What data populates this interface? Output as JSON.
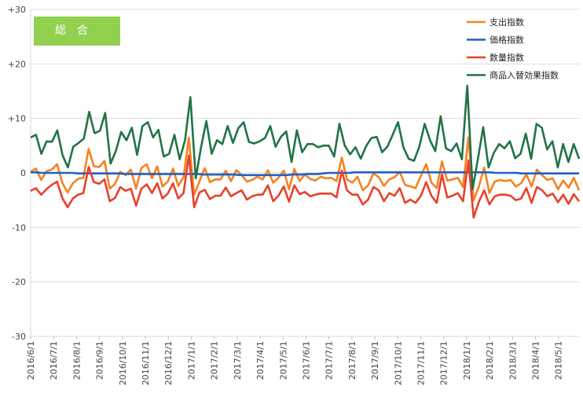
{
  "badge": "総合",
  "chart_data": {
    "type": "line",
    "ylim": [
      -30,
      30
    ],
    "yticks": [
      "+30",
      "+20",
      "+10",
      "0",
      "-10",
      "-20",
      "-30"
    ],
    "ytick_values": [
      30,
      20,
      10,
      0,
      -10,
      -20,
      -30
    ],
    "x_labels": [
      "2016/6/1",
      "2016/7/1",
      "2016/8/1",
      "2016/9/1",
      "2016/10/1",
      "2016/11/1",
      "2016/12/1",
      "2017/1/1",
      "2017/2/1",
      "2017/3/1",
      "2017/4/1",
      "2017/5/1",
      "2017/6/1",
      "2017/7/1",
      "2017/8/1",
      "2017/9/1",
      "2017/10/1",
      "2017/11/1",
      "2017/12/1",
      "2018/1/1",
      "2018/2/1",
      "2018/3/1",
      "2018/4/1",
      "2018/5/1"
    ],
    "grid": "horizontal",
    "legend_position": "top-right",
    "series": [
      {
        "name": "支出指数",
        "color": "#f58220",
        "values": [
          0.2,
          0.8,
          -1.3,
          0.3,
          0.6,
          1.6,
          -1.8,
          -3.6,
          -1.9,
          -1.1,
          -0.9,
          4.4,
          1.2,
          1.1,
          2.2,
          -2.9,
          -2.0,
          0.2,
          -0.4,
          0.6,
          -2.9,
          0.9,
          1.6,
          -1.0,
          1.2,
          -2.5,
          -1.6,
          0.8,
          -2.4,
          -0.8,
          6.5,
          -4.0,
          -1.6,
          0.9,
          -1.7,
          -1.2,
          -1.2,
          0.4,
          -1.5,
          0.5,
          -0.4,
          -1.6,
          -1.3,
          -0.7,
          -1.2,
          0.5,
          -1.8,
          -0.9,
          0.4,
          -3.0,
          0.7,
          -1.5,
          -0.3,
          -1.1,
          -1.4,
          -0.7,
          -1.0,
          -0.9,
          -1.5,
          2.8,
          -1.2,
          -1.8,
          -0.7,
          -3.2,
          -2.3,
          -0.1,
          -0.8,
          -2.4,
          -1.2,
          -0.8,
          0.2,
          -2.2,
          -2.5,
          -2.8,
          -0.5,
          1.6,
          -1.8,
          -2.8,
          2.1,
          -1.4,
          -1.2,
          -0.9,
          -2.6,
          6.5,
          -5.0,
          -2.5,
          1.0,
          -3.7,
          -1.6,
          -1.3,
          -1.5,
          -1.3,
          -2.5,
          -1.9,
          -0.3,
          -2.5,
          0.6,
          -0.4,
          -1.3,
          -1.0,
          -3.0,
          -1.4,
          -2.7,
          -0.9,
          -3.2
        ]
      },
      {
        "name": "価格指数",
        "color": "#2060c0",
        "values": [
          0.1,
          0.1,
          0.0,
          0.0,
          0.0,
          0.0,
          0.0,
          0.0,
          0.0,
          -0.1,
          -0.1,
          -0.1,
          -0.1,
          -0.1,
          -0.1,
          -0.1,
          -0.1,
          -0.1,
          -0.2,
          -0.2,
          -0.2,
          -0.2,
          -0.2,
          -0.2,
          -0.2,
          -0.2,
          -0.2,
          -0.2,
          -0.2,
          -0.2,
          -0.2,
          -0.2,
          -0.2,
          -0.3,
          -0.3,
          -0.3,
          -0.3,
          -0.3,
          -0.3,
          -0.3,
          -0.4,
          -0.4,
          -0.4,
          -0.4,
          -0.4,
          -0.4,
          -0.4,
          -0.4,
          -0.4,
          -0.4,
          -0.3,
          -0.3,
          -0.3,
          -0.2,
          -0.2,
          -0.2,
          -0.1,
          0.0,
          0.0,
          0.0,
          0.0,
          0.0,
          0.1,
          0.1,
          0.1,
          0.1,
          0.1,
          0.1,
          0.1,
          0.1,
          0.1,
          0.1,
          0.1,
          0.1,
          0.1,
          0.1,
          0.1,
          0.1,
          0.1,
          0.1,
          0.1,
          0.1,
          0.1,
          0.1,
          0.1,
          0.1,
          0.1,
          0.1,
          0.1,
          0.0,
          0.0,
          0.0,
          0.0,
          0.0,
          -0.1,
          -0.1,
          -0.1,
          -0.1,
          -0.1,
          -0.1,
          -0.1,
          -0.1,
          -0.1,
          -0.1,
          -0.1,
          -0.1
        ]
      },
      {
        "name": "数量指数",
        "color": "#e8412c",
        "values": [
          -3.3,
          -2.8,
          -4.0,
          -3.0,
          -2.2,
          -1.6,
          -4.6,
          -6.3,
          -4.7,
          -4.0,
          -3.7,
          1.1,
          -1.7,
          -2.0,
          -1.2,
          -5.2,
          -4.6,
          -2.6,
          -3.3,
          -2.9,
          -6.0,
          -2.9,
          -2.1,
          -3.7,
          -1.9,
          -4.7,
          -3.8,
          -1.9,
          -4.7,
          -3.7,
          3.2,
          -6.3,
          -3.6,
          -3.1,
          -4.8,
          -4.2,
          -4.2,
          -2.7,
          -4.3,
          -3.7,
          -3.2,
          -4.9,
          -4.3,
          -4.0,
          -4.0,
          -2.3,
          -5.2,
          -4.2,
          -2.5,
          -5.3,
          -2.3,
          -3.9,
          -3.5,
          -4.3,
          -4.0,
          -3.8,
          -3.8,
          -3.8,
          -4.5,
          0.4,
          -3.2,
          -4.0,
          -4.0,
          -5.8,
          -4.9,
          -2.6,
          -3.2,
          -5.2,
          -3.7,
          -4.2,
          -2.8,
          -5.5,
          -4.9,
          -5.5,
          -4.2,
          -1.7,
          -4.2,
          -5.5,
          -0.3,
          -4.5,
          -4.2,
          -3.7,
          -5.2,
          2.3,
          -8.2,
          -5.3,
          -3.2,
          -5.8,
          -4.3,
          -4.0,
          -4.0,
          -4.2,
          -5.0,
          -4.7,
          -2.8,
          -5.5,
          -2.6,
          -3.2,
          -4.3,
          -3.8,
          -5.4,
          -4.0,
          -5.7,
          -3.9,
          -5.2
        ]
      },
      {
        "name": "商品入替効果指数",
        "color": "#217346",
        "values": [
          6.5,
          7.0,
          3.5,
          5.8,
          5.7,
          7.8,
          3.2,
          1.0,
          4.8,
          5.5,
          6.3,
          11.2,
          7.3,
          7.7,
          11.0,
          1.7,
          4.0,
          7.5,
          6.0,
          8.3,
          3.3,
          8.6,
          9.3,
          6.5,
          7.9,
          3.0,
          3.5,
          7.0,
          2.5,
          6.0,
          13.9,
          -1.0,
          4.7,
          9.5,
          3.5,
          6.0,
          5.3,
          8.6,
          5.5,
          8.2,
          9.3,
          5.7,
          5.4,
          5.8,
          6.4,
          8.6,
          4.8,
          6.6,
          7.6,
          2.0,
          7.8,
          3.8,
          5.3,
          5.3,
          4.7,
          5.0,
          5.0,
          3.0,
          9.0,
          5.0,
          3.4,
          4.7,
          2.6,
          4.9,
          6.4,
          6.6,
          3.8,
          4.8,
          7.0,
          9.3,
          4.7,
          2.6,
          2.2,
          4.8,
          9.0,
          6.0,
          4.0,
          10.4,
          4.5,
          4.0,
          5.4,
          2.5,
          16.0,
          -3.0,
          2.5,
          8.4,
          1.0,
          3.7,
          5.3,
          4.5,
          5.8,
          2.7,
          3.5,
          7.2,
          2.6,
          9.0,
          8.3,
          4.3,
          5.8,
          1.0,
          5.3,
          2.0,
          5.3,
          2.6
        ]
      }
    ]
  }
}
